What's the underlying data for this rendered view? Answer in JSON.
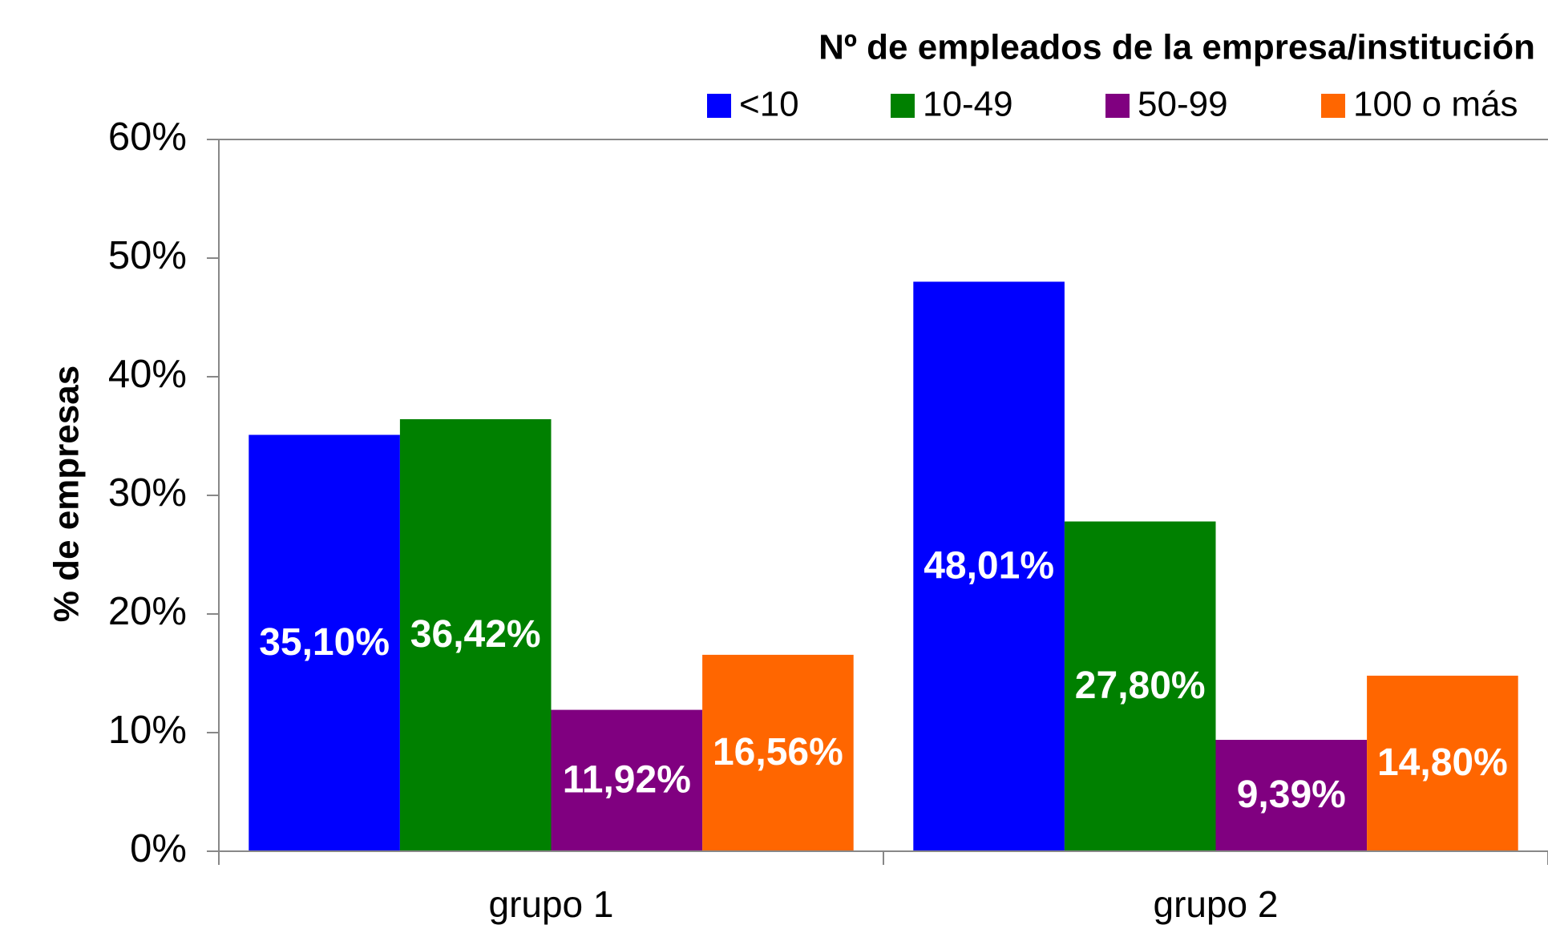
{
  "chart_data": {
    "type": "bar",
    "legend_title": "Nº de empleados de la empresa/institución",
    "y_label": "% de empresas",
    "categories": [
      "grupo 1",
      "grupo 2"
    ],
    "series": [
      {
        "name": "<10",
        "color": "#0000ff",
        "values": [
          35.1,
          48.01
        ],
        "value_labels": [
          "35,10%",
          "48,01%"
        ]
      },
      {
        "name": "10-49",
        "color": "#008000",
        "values": [
          36.42,
          27.8
        ],
        "value_labels": [
          "36,42%",
          "27,80%"
        ]
      },
      {
        "name": "50-99",
        "color": "#800080",
        "values": [
          11.92,
          9.39
        ],
        "value_labels": [
          "11,92%",
          "9,39%"
        ]
      },
      {
        "name": "100 o más",
        "color": "#ff6600",
        "values": [
          16.56,
          14.8
        ],
        "value_labels": [
          "16,56%",
          "14,80%"
        ]
      }
    ],
    "ylim": [
      0,
      60
    ],
    "yticks": [
      {
        "value": 0,
        "label": "0%"
      },
      {
        "value": 10,
        "label": "10%"
      },
      {
        "value": 20,
        "label": "20%"
      },
      {
        "value": 30,
        "label": "30%"
      },
      {
        "value": 40,
        "label": "40%"
      },
      {
        "value": 50,
        "label": "50%"
      },
      {
        "value": 60,
        "label": "60%"
      }
    ],
    "grid": false,
    "legend": "top-right"
  }
}
